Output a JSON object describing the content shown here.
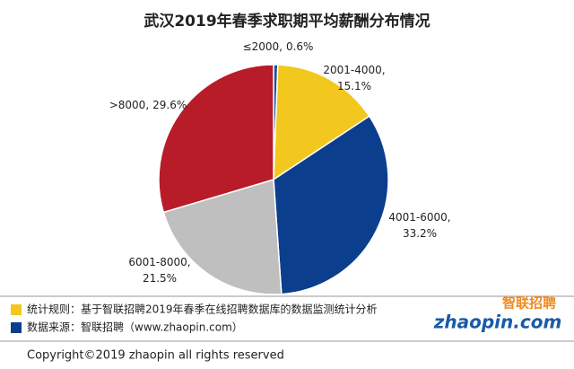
{
  "chart_data": {
    "type": "pie",
    "title": "武汉2019年春季求职期平均薪酬分布情况",
    "categories": [
      "≤2000,",
      "2001-4000,",
      "4001-6000,",
      "6001-8000,",
      ">8000,"
    ],
    "values": [
      0.6,
      15.1,
      33.2,
      21.5,
      29.6
    ],
    "value_labels": [
      "0.6%",
      "15.1%",
      "33.2%",
      "21.5%",
      "29.6%"
    ],
    "colors": [
      "#1f4e9c",
      "#f2c81e",
      "#0c3e8e",
      "#bfbfbf",
      "#b71c28"
    ]
  },
  "notes": [
    {
      "text": "统计规则：基于智联招聘2019年春季在线招聘数据库的数据监测统计分析",
      "color": "#f2c81e"
    },
    {
      "text": "数据来源：智联招聘（www.zhaopin.com）",
      "color": "#0c3e8e"
    }
  ],
  "logo": {
    "top": "智联招聘",
    "bottom": "zhaopin.com"
  },
  "copyright": "Copyright©2019 zhaopin all rights reserved"
}
